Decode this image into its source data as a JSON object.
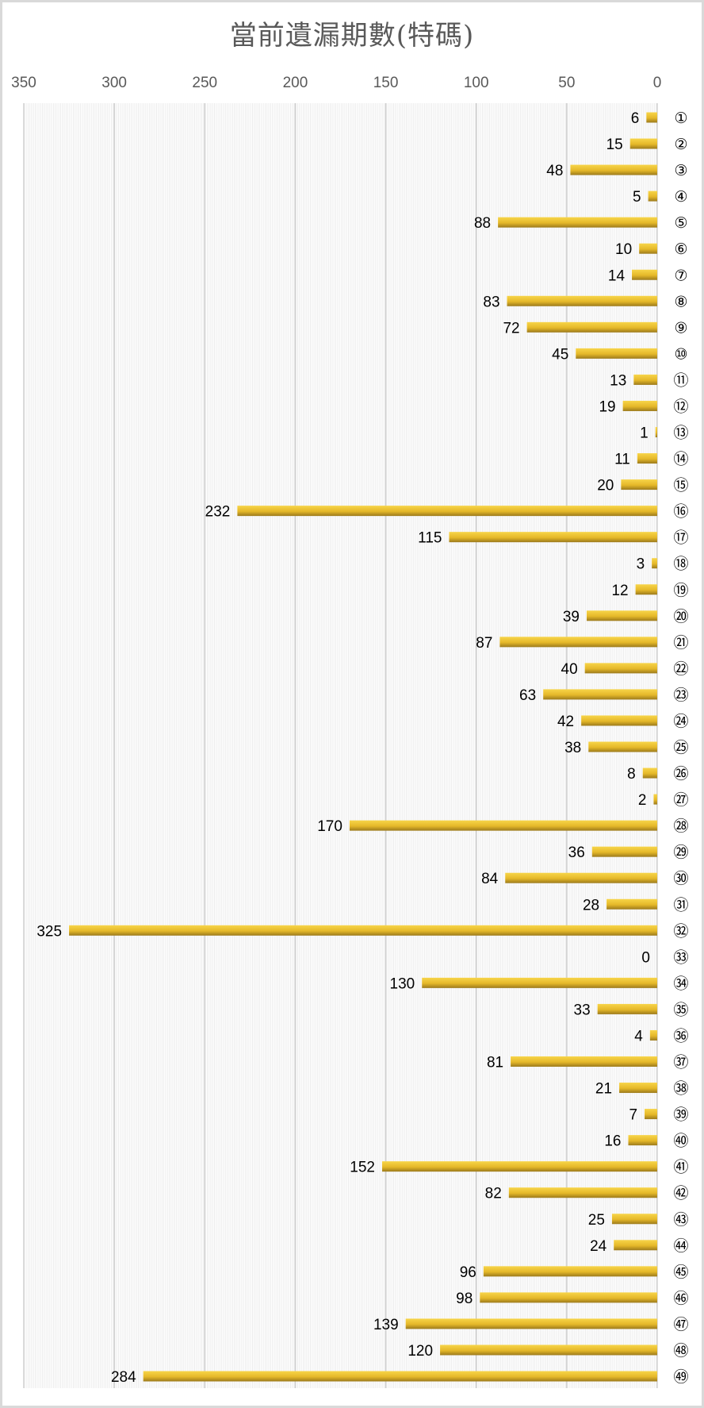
{
  "chart_data": {
    "type": "bar",
    "orientation": "horizontal",
    "x_axis_reversed": true,
    "title": "當前遺漏期數(特碼)",
    "xlim": [
      0,
      350
    ],
    "xticks": [
      350,
      300,
      250,
      200,
      150,
      100,
      50,
      0
    ],
    "grid": true,
    "categories": [
      "①",
      "②",
      "③",
      "④",
      "⑤",
      "⑥",
      "⑦",
      "⑧",
      "⑨",
      "⑩",
      "⑪",
      "⑫",
      "⑬",
      "⑭",
      "⑮",
      "⑯",
      "⑰",
      "⑱",
      "⑲",
      "⑳",
      "㉑",
      "㉒",
      "㉓",
      "㉔",
      "㉕",
      "㉖",
      "㉗",
      "㉘",
      "㉙",
      "㉚",
      "㉛",
      "㉜",
      "㉝",
      "㉞",
      "㉟",
      "㊱",
      "㊲",
      "㊳",
      "㊴",
      "㊵",
      "㊶",
      "㊷",
      "㊸",
      "㊹",
      "㊺",
      "㊻",
      "㊼",
      "㊽",
      "㊾"
    ],
    "values": [
      6,
      15,
      48,
      5,
      88,
      10,
      14,
      83,
      72,
      45,
      13,
      19,
      1,
      11,
      20,
      232,
      115,
      3,
      12,
      39,
      87,
      40,
      63,
      42,
      38,
      8,
      2,
      170,
      36,
      84,
      28,
      325,
      0,
      130,
      33,
      4,
      81,
      21,
      7,
      16,
      152,
      82,
      25,
      24,
      96,
      98,
      139,
      120,
      284
    ],
    "colors": {
      "bar_light": "#f7d54a",
      "bar_mid": "#e5b829",
      "bar_dark": "#9c7a1c",
      "grid_major": "#d0d0d0",
      "grid_minor": "#e8e8e8"
    }
  }
}
